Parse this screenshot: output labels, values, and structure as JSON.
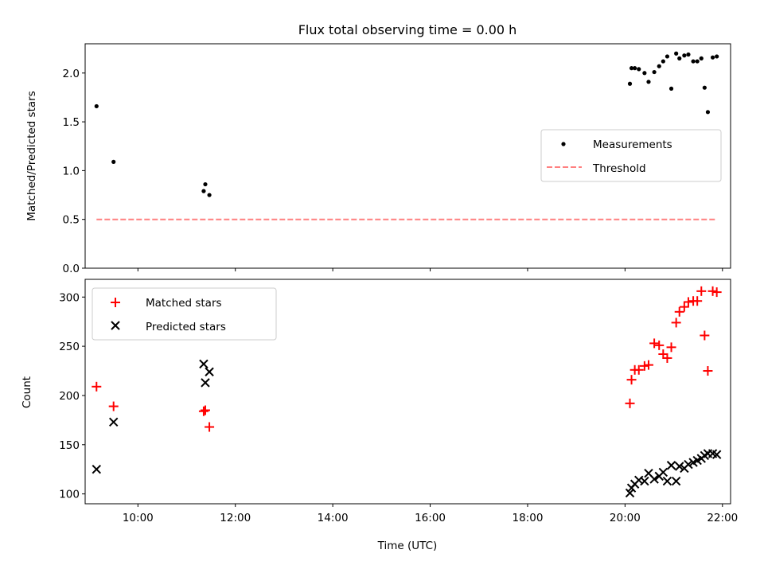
{
  "chart_data": [
    {
      "type": "scatter",
      "title": "Flux total observing time = 0.00 h",
      "xlabel": "",
      "ylabel": "Matched/Predicted stars",
      "xlim": [
        "08:55",
        "22:10"
      ],
      "ylim": [
        0,
        2.3
      ],
      "yticks": [
        "0.0",
        "0.5",
        "1.0",
        "1.5",
        "2.0"
      ],
      "legend": "center-right",
      "grid": false,
      "series": [
        {
          "name": "Measurements",
          "marker": "dot",
          "color": "#000000",
          "x": [
            "09:09",
            "09:30",
            "11:21",
            "11:23",
            "11:28",
            "20:06",
            "20:08",
            "20:12",
            "20:17",
            "20:24",
            "20:29",
            "20:36",
            "20:42",
            "20:47",
            "20:52",
            "20:57",
            "21:03",
            "21:07",
            "21:13",
            "21:18",
            "21:24",
            "21:29",
            "21:34",
            "21:38",
            "21:42",
            "21:48",
            "21:53"
          ],
          "y": [
            1.66,
            1.09,
            0.79,
            0.86,
            0.75,
            1.89,
            2.05,
            2.05,
            2.04,
            2.0,
            1.91,
            2.01,
            2.07,
            2.12,
            2.17,
            1.84,
            2.2,
            2.15,
            2.18,
            2.19,
            2.12,
            2.12,
            2.15,
            1.85,
            1.6,
            2.16,
            2.17
          ]
        },
        {
          "name": "Threshold",
          "line": "dashed",
          "color": "#ff8080",
          "x": [
            "09:09",
            "21:53"
          ],
          "y": [
            0.5,
            0.5
          ]
        }
      ]
    },
    {
      "type": "scatter",
      "title": "",
      "xlabel": "Time (UTC)",
      "ylabel": "Count",
      "xlim": [
        "08:55",
        "22:10"
      ],
      "xticks": [
        "10:00",
        "12:00",
        "14:00",
        "16:00",
        "18:00",
        "20:00",
        "22:00"
      ],
      "ylim": [
        90,
        318
      ],
      "yticks": [
        "100",
        "150",
        "200",
        "250",
        "300"
      ],
      "legend": "upper-left",
      "grid": false,
      "series": [
        {
          "name": "Matched stars",
          "marker": "plus",
          "color": "#ff0000",
          "x": [
            "09:09",
            "09:30",
            "11:21",
            "11:23",
            "11:28",
            "20:06",
            "20:08",
            "20:12",
            "20:17",
            "20:24",
            "20:29",
            "20:36",
            "20:42",
            "20:47",
            "20:52",
            "20:57",
            "21:03",
            "21:07",
            "21:13",
            "21:18",
            "21:24",
            "21:29",
            "21:34",
            "21:38",
            "21:42",
            "21:48",
            "21:53"
          ],
          "y": [
            209,
            189,
            184,
            185,
            168,
            192,
            216,
            226,
            226,
            230,
            231,
            253,
            251,
            242,
            238,
            249,
            274,
            285,
            290,
            295,
            296,
            296,
            306,
            261,
            225,
            306,
            305
          ]
        },
        {
          "name": "Predicted stars",
          "marker": "x",
          "color": "#000000",
          "x": [
            "09:09",
            "09:30",
            "11:21",
            "11:23",
            "11:28",
            "20:06",
            "20:08",
            "20:12",
            "20:17",
            "20:24",
            "20:29",
            "20:36",
            "20:42",
            "20:47",
            "20:52",
            "20:57",
            "21:03",
            "21:07",
            "21:13",
            "21:18",
            "21:24",
            "21:29",
            "21:34",
            "21:38",
            "21:42",
            "21:48",
            "21:53"
          ],
          "y": [
            125,
            173,
            232,
            213,
            224,
            101,
            106,
            110,
            114,
            113,
            121,
            115,
            118,
            122,
            113,
            129,
            113,
            128,
            126,
            130,
            132,
            134,
            136,
            139,
            141,
            141,
            140
          ]
        }
      ]
    }
  ]
}
